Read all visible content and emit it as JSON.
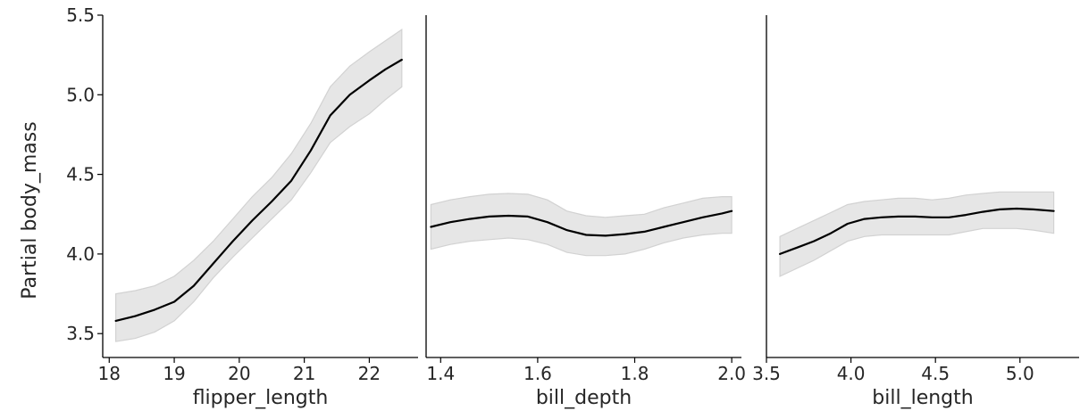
{
  "figure": {
    "ylabel": "Partial body_mass"
  },
  "chart_data": [
    {
      "type": "line",
      "xlabel": "flipper_length",
      "xticks": [
        18,
        19,
        20,
        21,
        22
      ],
      "xtick_labels": [
        "18",
        "19",
        "20",
        "21",
        "22"
      ],
      "yticks": [
        3.5,
        4.0,
        4.5,
        5.0,
        5.5
      ],
      "ytick_labels": [
        "3.5",
        "4.0",
        "4.5",
        "5.0",
        "5.5"
      ],
      "xlim": [
        17.9,
        22.75
      ],
      "ylim": [
        3.35,
        5.5
      ],
      "grid": false,
      "series": [
        {
          "x": [
            18.1,
            18.4,
            18.7,
            19.0,
            19.3,
            19.6,
            19.9,
            20.2,
            20.5,
            20.8,
            21.1,
            21.4,
            21.7,
            22.0,
            22.25,
            22.5
          ],
          "y": [
            3.58,
            3.61,
            3.65,
            3.7,
            3.8,
            3.94,
            4.08,
            4.21,
            4.33,
            4.46,
            4.65,
            4.87,
            5.0,
            5.09,
            5.16,
            5.22
          ],
          "lower": [
            3.45,
            3.47,
            3.51,
            3.58,
            3.7,
            3.85,
            3.98,
            4.1,
            4.22,
            4.34,
            4.51,
            4.7,
            4.8,
            4.88,
            4.97,
            5.05
          ],
          "upper": [
            3.75,
            3.77,
            3.8,
            3.86,
            3.96,
            4.08,
            4.22,
            4.36,
            4.48,
            4.63,
            4.82,
            5.05,
            5.18,
            5.27,
            5.34,
            5.41
          ]
        }
      ]
    },
    {
      "type": "line",
      "xlabel": "bill_depth",
      "xticks": [
        1.4,
        1.6,
        1.8,
        2.0
      ],
      "xtick_labels": [
        "1.4",
        "1.6",
        "1.8",
        "2.0"
      ],
      "yticks": [],
      "ytick_labels": [],
      "xlim": [
        1.37,
        2.02
      ],
      "ylim": [
        3.35,
        5.5
      ],
      "grid": false,
      "series": [
        {
          "x": [
            1.38,
            1.42,
            1.46,
            1.5,
            1.54,
            1.58,
            1.62,
            1.66,
            1.7,
            1.74,
            1.78,
            1.82,
            1.86,
            1.9,
            1.94,
            1.98,
            2.0
          ],
          "y": [
            4.17,
            4.2,
            4.22,
            4.235,
            4.24,
            4.235,
            4.2,
            4.15,
            4.12,
            4.115,
            4.125,
            4.14,
            4.17,
            4.2,
            4.23,
            4.255,
            4.27
          ],
          "lower": [
            4.03,
            4.06,
            4.08,
            4.09,
            4.1,
            4.09,
            4.06,
            4.01,
            3.99,
            3.99,
            4.0,
            4.03,
            4.07,
            4.1,
            4.12,
            4.13,
            4.13
          ],
          "upper": [
            4.31,
            4.34,
            4.36,
            4.375,
            4.38,
            4.375,
            4.34,
            4.27,
            4.24,
            4.23,
            4.24,
            4.25,
            4.29,
            4.32,
            4.35,
            4.36,
            4.36
          ]
        }
      ]
    },
    {
      "type": "line",
      "xlabel": "bill_length",
      "xticks": [
        3.5,
        4.0,
        4.5,
        5.0
      ],
      "xtick_labels": [
        "3.5",
        "4.0",
        "4.5",
        "5.0"
      ],
      "yticks": [],
      "ytick_labels": [],
      "xlim": [
        3.5,
        5.35
      ],
      "ylim": [
        3.35,
        5.5
      ],
      "grid": false,
      "series": [
        {
          "x": [
            3.58,
            3.68,
            3.78,
            3.88,
            3.98,
            4.08,
            4.18,
            4.28,
            4.38,
            4.48,
            4.58,
            4.68,
            4.78,
            4.88,
            4.98,
            5.08,
            5.2
          ],
          "y": [
            4.0,
            4.04,
            4.08,
            4.13,
            4.19,
            4.22,
            4.23,
            4.235,
            4.235,
            4.23,
            4.23,
            4.245,
            4.265,
            4.28,
            4.285,
            4.28,
            4.27
          ],
          "lower": [
            3.86,
            3.91,
            3.96,
            4.02,
            4.08,
            4.11,
            4.12,
            4.12,
            4.12,
            4.12,
            4.12,
            4.14,
            4.16,
            4.16,
            4.16,
            4.15,
            4.13
          ],
          "upper": [
            4.11,
            4.16,
            4.21,
            4.26,
            4.31,
            4.33,
            4.34,
            4.35,
            4.35,
            4.34,
            4.35,
            4.37,
            4.38,
            4.39,
            4.39,
            4.39,
            4.39
          ]
        }
      ]
    }
  ]
}
